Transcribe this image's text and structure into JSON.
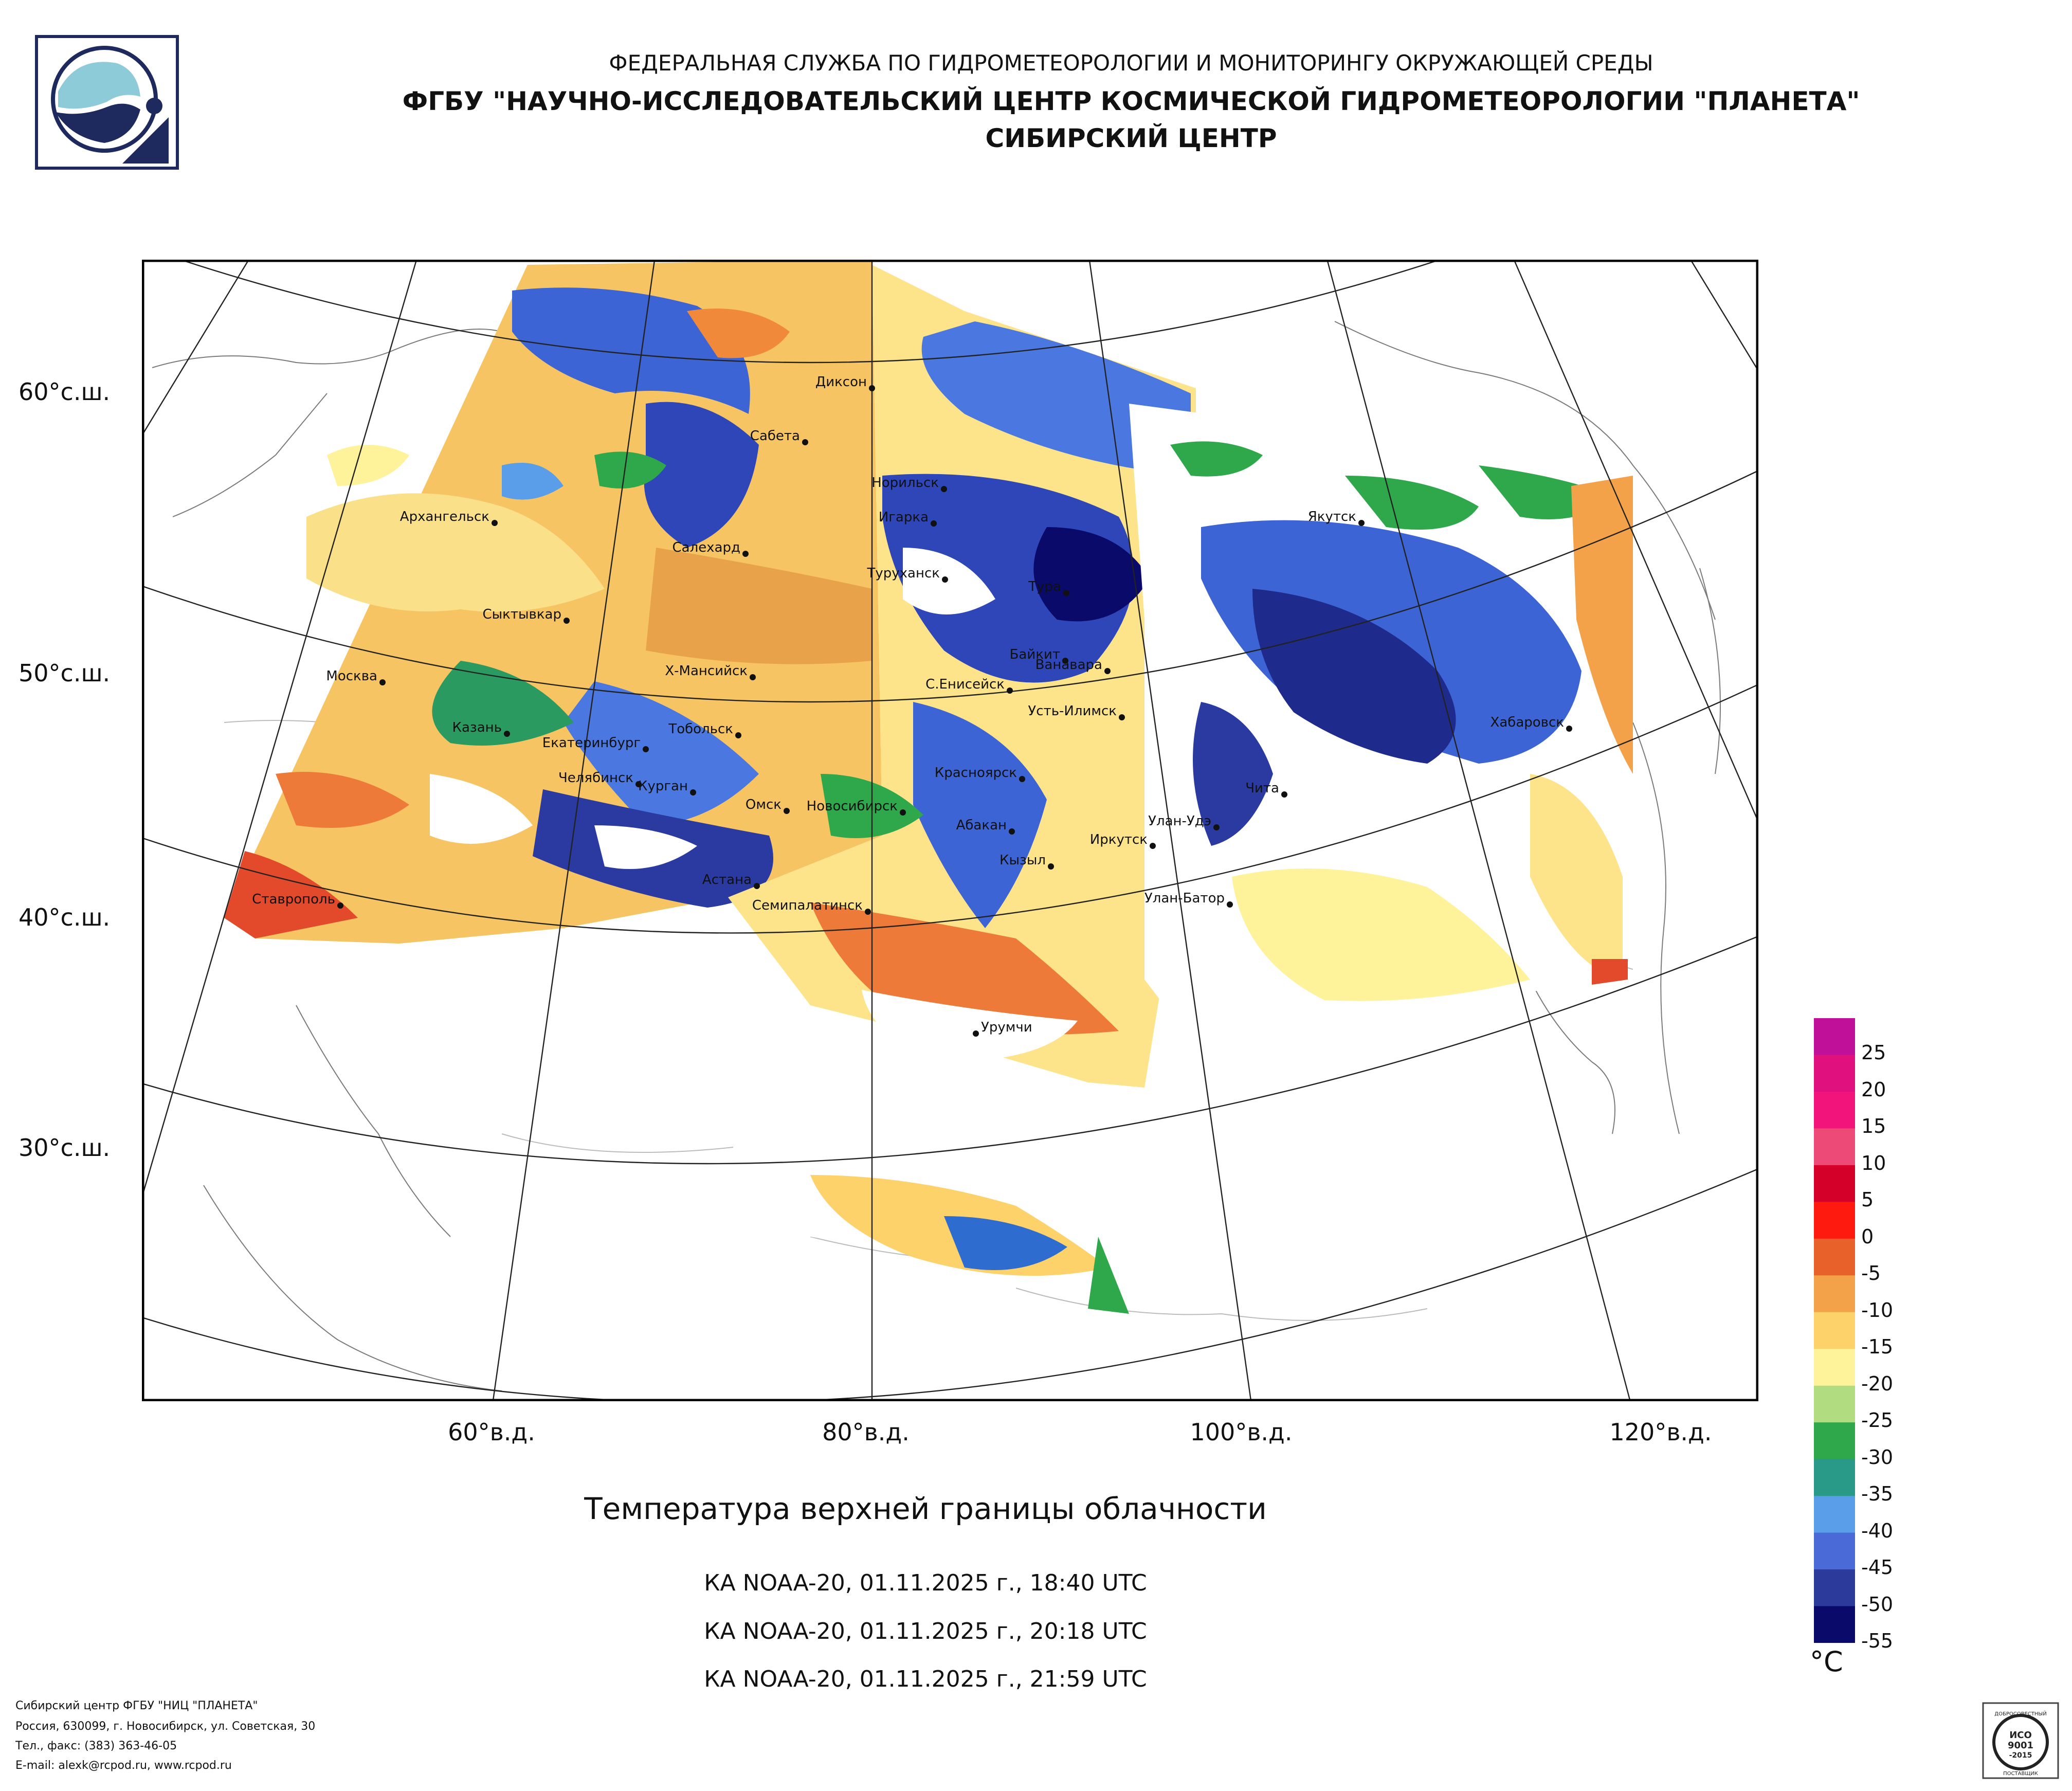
{
  "header": {
    "agency": "ФЕДЕРАЛЬНАЯ СЛУЖБА ПО ГИДРОМЕТЕОРОЛОГИИ И МОНИТОРИНГУ ОКРУЖАЮЩЕЙ СРЕДЫ",
    "institute": "ФГБУ \"НАУЧНО-ИССЛЕДОВАТЕЛЬСКИЙ ЦЕНТР КОСМИЧЕСКОЙ ГИДРОМЕТЕОРОЛОГИИ \"ПЛАНЕТА\"",
    "center": "СИБИРСКИЙ ЦЕНТР"
  },
  "logo_icon": "planeta-logo-icon",
  "map": {
    "latitude_labels": [
      "60°с.ш.",
      "50°с.ш.",
      "40°с.ш.",
      "30°с.ш."
    ],
    "longitude_labels": [
      "60°в.д.",
      "80°в.д.",
      "100°в.д.",
      "120°в.д."
    ],
    "cities": [
      {
        "name": "Диксон"
      },
      {
        "name": "Сабета"
      },
      {
        "name": "Норильск"
      },
      {
        "name": "Игарка"
      },
      {
        "name": "Архангельск"
      },
      {
        "name": "Салехард"
      },
      {
        "name": "Туруханск"
      },
      {
        "name": "Тура"
      },
      {
        "name": "Якутск"
      },
      {
        "name": "Сыктывкар"
      },
      {
        "name": "Байкит"
      },
      {
        "name": "Ванавара"
      },
      {
        "name": "Москва"
      },
      {
        "name": "Х-Мансийск"
      },
      {
        "name": "С.Енисейск"
      },
      {
        "name": "Усть-Илимск"
      },
      {
        "name": "Хабаровск"
      },
      {
        "name": "Казань"
      },
      {
        "name": "Тобольск"
      },
      {
        "name": "Екатеринбург"
      },
      {
        "name": "Красноярск"
      },
      {
        "name": "Челябинск"
      },
      {
        "name": "Курган"
      },
      {
        "name": "Чита"
      },
      {
        "name": "Омск"
      },
      {
        "name": "Новосибирск"
      },
      {
        "name": "Абакан"
      },
      {
        "name": "Улан-Удэ"
      },
      {
        "name": "Иркутск"
      },
      {
        "name": "Кызыл"
      },
      {
        "name": "Астана"
      },
      {
        "name": "Улан-Батор"
      },
      {
        "name": "Ставрополь"
      },
      {
        "name": "Семипалатинск"
      },
      {
        "name": "Урумчи"
      }
    ]
  },
  "product": {
    "title": "Температура верхней границы облачности",
    "passes": [
      "КА NOAA-20, 01.11.2025 г., 18:40 UTC",
      "КА NOAA-20, 01.11.2025 г., 20:18 UTC",
      "КА NOAA-20, 01.11.2025 г., 21:59 UTC"
    ]
  },
  "legend": {
    "unit": "°C",
    "ticks": [
      "25",
      "20",
      "15",
      "10",
      "5",
      "0",
      "-5",
      "-10",
      "-15",
      "-20",
      "-25",
      "-30",
      "-35",
      "-40",
      "-45",
      "-50",
      "-55"
    ],
    "colors": [
      "#c0109a",
      "#e0107f",
      "#f2147a",
      "#ee4a78",
      "#d4002a",
      "#ff1a10",
      "#e8612b",
      "#f4a24a",
      "#fdd26a",
      "#fef39a",
      "#b2dc80",
      "#2ea84a",
      "#2a9a88",
      "#5a9de8",
      "#4a6ad8",
      "#2c3a9c",
      "#0a0a6a"
    ]
  },
  "footer": {
    "line1": "Сибирский центр ФГБУ \"НИЦ \"ПЛАНЕТА\"",
    "line2": "Россия, 630099, г. Новосибирск, ул. Советская, 30",
    "line3": "Тел., факс: (383) 363-46-05",
    "line4": "E-mail: alexk@rcpod.ru, www.rcpod.ru"
  },
  "certificate": {
    "text_top": "ДОБРОСОВЕСТНЫЙ",
    "text_mid1": "ИСО",
    "text_mid2": "9001",
    "text_mid3": "-2015",
    "text_bottom": "ПОСТАВЩИК"
  }
}
